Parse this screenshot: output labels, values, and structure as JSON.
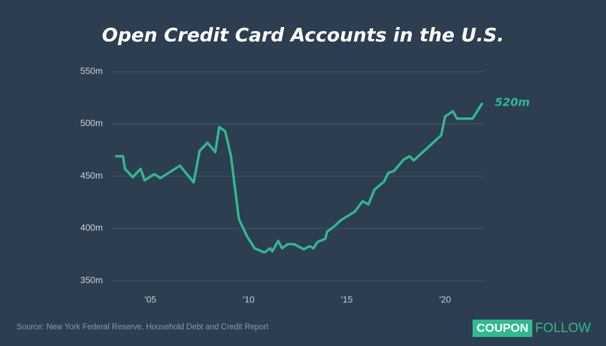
{
  "chart_data": {
    "type": "line",
    "title": "Open Credit Card Accounts in the U.S.",
    "x": [
      2003.2,
      2003.6,
      2003.7,
      2004.1,
      2004.5,
      2004.7,
      2005.2,
      2005.5,
      2006.5,
      2007.2,
      2007.5,
      2007.9,
      2008.3,
      2008.5,
      2008.8,
      2009.1,
      2009.5,
      2009.9,
      2010.3,
      2010.8,
      2011.1,
      2011.2,
      2011.5,
      2011.7,
      2012.0,
      2012.3,
      2012.8,
      2013.1,
      2013.3,
      2013.5,
      2013.9,
      2014.0,
      2014.3,
      2014.7,
      2015.4,
      2015.8,
      2016.1,
      2016.4,
      2016.9,
      2017.1,
      2017.4,
      2017.9,
      2018.2,
      2018.4,
      2019.8,
      2020.0,
      2020.4,
      2020.6,
      2021.4,
      2021.9
    ],
    "series": [
      {
        "color": "#2fba90",
        "values": [
          469,
          469,
          457,
          449,
          457,
          446,
          452,
          448,
          460,
          444,
          474,
          482,
          473,
          497,
          493,
          469,
          409,
          393,
          381,
          377,
          381,
          378,
          388,
          381,
          385,
          385,
          380,
          383,
          381,
          387,
          390,
          397,
          401,
          408,
          416,
          426,
          423,
          437,
          445,
          453,
          455,
          466,
          469,
          465,
          489,
          507,
          512,
          505,
          505,
          520
        ],
        "value_labels": [
          null,
          null,
          null,
          null,
          null,
          null,
          null,
          null,
          null,
          null,
          null,
          null,
          null,
          null,
          null,
          null,
          null,
          null,
          null,
          null,
          null,
          null,
          null,
          null,
          null,
          null,
          null,
          null,
          null,
          null,
          null,
          null,
          null,
          null,
          null,
          null,
          null,
          null,
          null,
          null,
          null,
          null,
          null,
          null,
          null,
          null,
          null,
          null,
          null,
          "520m"
        ]
      }
    ],
    "xlim": [
      2003.0,
      2022.0
    ],
    "xticks": [
      {
        "value": 2005,
        "label": "'05"
      },
      {
        "value": 2010,
        "label": "'10"
      },
      {
        "value": 2015,
        "label": "'15"
      },
      {
        "value": 2020,
        "label": "'20"
      }
    ],
    "ylim": [
      350,
      550
    ],
    "yticks": [
      {
        "value": 350,
        "label": "350m"
      },
      {
        "value": 400,
        "label": "400m"
      },
      {
        "value": 450,
        "label": "450m"
      },
      {
        "value": 500,
        "label": "500m"
      },
      {
        "value": 550,
        "label": "550m"
      }
    ],
    "grid": true,
    "grid_color": "#44566a"
  },
  "footer": {
    "source": "Source: New York Federal Reserve, Household Debt and Credit Report",
    "logo": [
      "COUPON",
      "FOLLOW"
    ]
  }
}
